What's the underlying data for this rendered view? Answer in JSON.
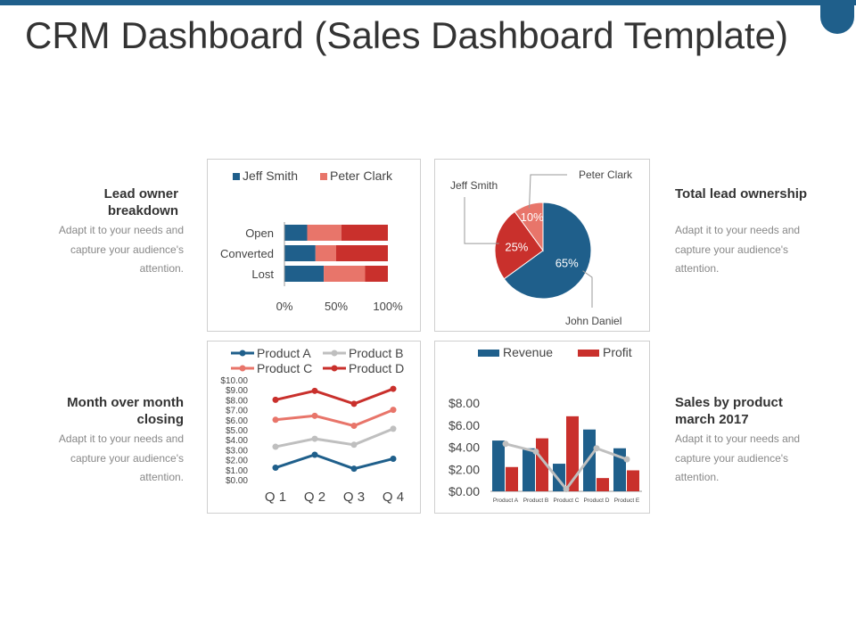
{
  "title": "CRM Dashboard (Sales Dashboard Template)",
  "colors": {
    "blue": "#1f5f8b",
    "salmon": "#e8756a",
    "red": "#c9302c",
    "gray": "#bfbfbf"
  },
  "sections": {
    "lead_owner": {
      "heading": "Lead owner breakdown",
      "text": "Adapt it to your needs and capture your audience's attention."
    },
    "total_lead": {
      "heading": "Total lead ownership",
      "text": "Adapt it to your needs and capture your audience's attention."
    },
    "month_closing": {
      "heading": "Month over month closing",
      "text": "Adapt it to your needs and capture your audience's attention."
    },
    "sales_product": {
      "heading": "Sales by product march 2017",
      "text": "Adapt it to your needs and capture your audience's attention."
    }
  },
  "chart_data": [
    {
      "type": "bar",
      "orientation": "horizontal",
      "stacked": "100%",
      "categories": [
        "Open",
        "Converted",
        "Lost"
      ],
      "series": [
        {
          "name": "Jeff Smith",
          "values": [
            22,
            30,
            38
          ]
        },
        {
          "name": "Peter Clark",
          "values": [
            33,
            20,
            40
          ]
        },
        {
          "name": "",
          "values": [
            45,
            50,
            22
          ]
        }
      ],
      "xticks": [
        "0%",
        "50%",
        "100%"
      ],
      "legend": "top"
    },
    {
      "type": "pie",
      "labels": [
        "John Daniel",
        "Jeff Smith",
        "Peter Clark"
      ],
      "values": [
        65,
        25,
        10
      ],
      "value_labels": [
        "65%",
        "25%",
        "10%"
      ]
    },
    {
      "type": "line",
      "categories": [
        "Q 1",
        "Q 2",
        "Q 3",
        "Q 4"
      ],
      "series": [
        {
          "name": "Product A",
          "values": [
            1.2,
            2.5,
            1.1,
            2.1
          ]
        },
        {
          "name": "Product B",
          "values": [
            3.3,
            4.1,
            3.5,
            5.1
          ]
        },
        {
          "name": "Product C",
          "values": [
            6.0,
            6.4,
            5.4,
            7.0
          ]
        },
        {
          "name": "Product D",
          "values": [
            8.0,
            8.9,
            7.6,
            9.1
          ]
        }
      ],
      "yticks": [
        "$0.00",
        "$1.00",
        "$2.00",
        "$3.00",
        "$4.00",
        "$5.00",
        "$6.00",
        "$7.00",
        "$8.00",
        "$9.00",
        "$10.00"
      ],
      "ylim": [
        0,
        10
      ],
      "legend": "top"
    },
    {
      "type": "bar",
      "categories": [
        "Product A",
        "Product B",
        "Product C",
        "Product D",
        "Product E"
      ],
      "series": [
        {
          "name": "Revenue",
          "values": [
            4.6,
            3.9,
            2.5,
            5.6,
            3.9
          ]
        },
        {
          "name": "Profit",
          "values": [
            2.2,
            4.8,
            6.8,
            1.2,
            1.9
          ]
        },
        {
          "name": "",
          "type": "line",
          "values": [
            4.3,
            3.6,
            0.2,
            3.9,
            2.9
          ]
        }
      ],
      "yticks": [
        "$0.00",
        "$2.00",
        "$4.00",
        "$6.00",
        "$8.00"
      ],
      "ylim": [
        0,
        8
      ],
      "legend": "top"
    }
  ]
}
